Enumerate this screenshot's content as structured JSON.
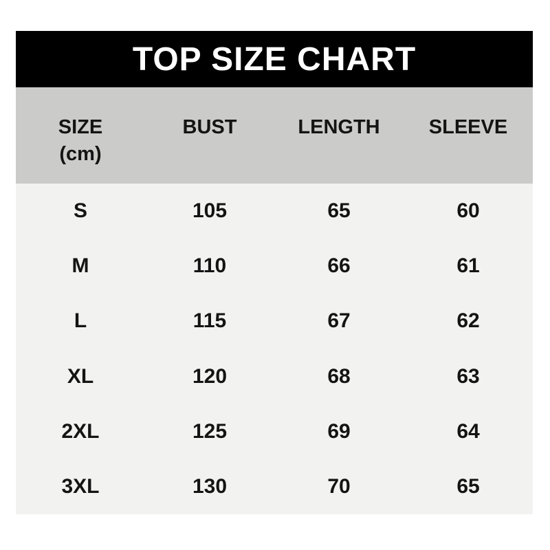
{
  "title": "TOP SIZE CHART",
  "header": {
    "size_label": "SIZE",
    "size_unit": "(cm)",
    "bust_label": "BUST",
    "length_label": "LENGTH",
    "sleeve_label": "SLEEVE"
  },
  "chart_data": {
    "type": "table",
    "title": "TOP SIZE CHART",
    "unit": "cm",
    "columns": [
      "SIZE (cm)",
      "BUST",
      "LENGTH",
      "SLEEVE"
    ],
    "rows": [
      [
        "S",
        105,
        65,
        60
      ],
      [
        "M",
        110,
        66,
        61
      ],
      [
        "L",
        115,
        67,
        62
      ],
      [
        "XL",
        120,
        68,
        63
      ],
      [
        "2XL",
        125,
        69,
        64
      ],
      [
        "3XL",
        130,
        70,
        65
      ]
    ]
  },
  "colors": {
    "banner_bg": "#000000",
    "banner_text": "#ffffff",
    "header_bg": "#cbcbca",
    "body_bg": "#f2f2f0",
    "text": "#141414",
    "page_bg": "#ffffff"
  }
}
